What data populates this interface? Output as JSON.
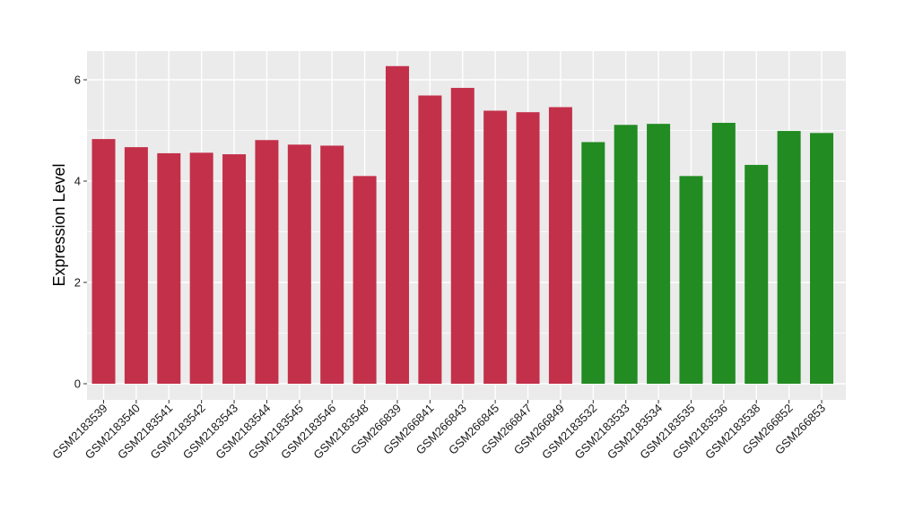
{
  "chart_data": {
    "type": "bar",
    "title": "",
    "xlabel": "",
    "ylabel": "Expression Level",
    "ylim": [
      0,
      6.55
    ],
    "yticks": [
      0,
      2,
      4,
      6
    ],
    "grid": true,
    "legend": "none",
    "categories": [
      "GSM2183539",
      "GSM2183540",
      "GSM2183541",
      "GSM2183542",
      "GSM2183543",
      "GSM2183544",
      "GSM2183545",
      "GSM2183546",
      "GSM2183548",
      "GSM266839",
      "GSM266841",
      "GSM266843",
      "GSM266845",
      "GSM266847",
      "GSM266849",
      "GSM2183532",
      "GSM2183533",
      "GSM2183534",
      "GSM2183535",
      "GSM2183536",
      "GSM2183538",
      "GSM266852",
      "GSM266853"
    ],
    "values": [
      4.83,
      4.67,
      4.55,
      4.56,
      4.53,
      4.81,
      4.72,
      4.7,
      4.1,
      6.27,
      5.69,
      5.84,
      5.39,
      5.36,
      5.46,
      4.77,
      5.11,
      5.13,
      4.1,
      5.15,
      4.32,
      4.99,
      4.95
    ],
    "groups": [
      "a",
      "a",
      "a",
      "a",
      "a",
      "a",
      "a",
      "a",
      "a",
      "a",
      "a",
      "a",
      "a",
      "a",
      "a",
      "b",
      "b",
      "b",
      "b",
      "b",
      "b",
      "b",
      "b"
    ],
    "group_colors": {
      "a": "#c3304a",
      "b": "#228b22"
    },
    "panel_color": "#ebebeb",
    "grid_color": "#ffffff"
  }
}
